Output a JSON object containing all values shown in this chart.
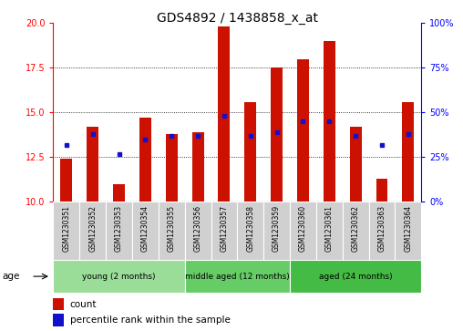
{
  "title": "GDS4892 / 1438858_x_at",
  "samples": [
    "GSM1230351",
    "GSM1230352",
    "GSM1230353",
    "GSM1230354",
    "GSM1230355",
    "GSM1230356",
    "GSM1230357",
    "GSM1230358",
    "GSM1230359",
    "GSM1230360",
    "GSM1230361",
    "GSM1230362",
    "GSM1230363",
    "GSM1230364"
  ],
  "bar_values": [
    12.4,
    14.2,
    11.0,
    14.7,
    13.8,
    13.9,
    19.8,
    15.6,
    17.5,
    18.0,
    19.0,
    14.2,
    11.3,
    15.6
  ],
  "percentile_values": [
    13.2,
    13.8,
    12.7,
    13.5,
    13.7,
    13.7,
    14.8,
    13.7,
    13.9,
    14.5,
    14.5,
    13.7,
    13.2,
    13.8
  ],
  "bar_bottom": 10,
  "ylim_left": [
    10,
    20
  ],
  "ylim_right": [
    0,
    100
  ],
  "yticks_left": [
    10,
    12.5,
    15,
    17.5,
    20
  ],
  "yticks_right": [
    0,
    25,
    50,
    75,
    100
  ],
  "bar_color": "#cc1100",
  "dot_color": "#1111cc",
  "groups": [
    {
      "label": "young (2 months)",
      "start": 0,
      "end": 5
    },
    {
      "label": "middle aged (12 months)",
      "start": 5,
      "end": 9
    },
    {
      "label": "aged (24 months)",
      "start": 9,
      "end": 14
    }
  ],
  "group_colors": [
    "#99dd99",
    "#66cc66",
    "#44bb44"
  ],
  "age_label": "age",
  "legend_count": "count",
  "legend_pct": "percentile rank within the sample",
  "title_fontsize": 10,
  "tick_fontsize": 7,
  "bar_width": 0.45
}
